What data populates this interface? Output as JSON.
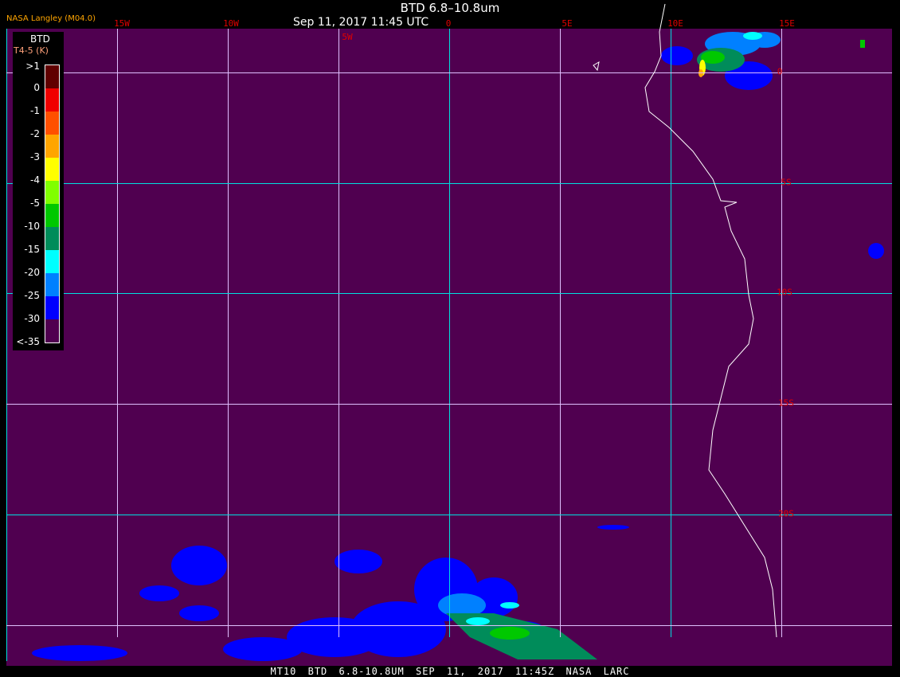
{
  "header": {
    "title": "BTD 6.8–10.8um",
    "subtitle": "Sep 11, 2017 11:45 UTC",
    "credit": "NASA Langley (M04.0)"
  },
  "longitude_labels": [
    "15W",
    "10W",
    "5W",
    "0",
    "5E",
    "10E",
    "15E"
  ],
  "latitude_labels": [
    "0",
    "5S",
    "10S",
    "15S",
    "20S"
  ],
  "legend": {
    "title": "BTD",
    "unit": "T4-5 (K)",
    "labels": [
      ">1",
      "0",
      "-1",
      "-2",
      "-3",
      "-4",
      "-5",
      "-10",
      "-15",
      "-20",
      "-25",
      "-30",
      "<-35"
    ],
    "colors": [
      "#600000",
      "#f00000",
      "#ff5000",
      "#ffa500",
      "#ffff00",
      "#80ff00",
      "#00c800",
      "#008c5a",
      "#00ffff",
      "#0080ff",
      "#0000ff",
      "#500050"
    ]
  },
  "colors": {
    "background": "#500050",
    "grid_cyan": "#00e0e0",
    "grid_light": "#e0c0ff",
    "coastline": "#ffffff"
  },
  "footer": "MT10  BTD 6.8-10.8UM   SEP 11, 2017 11:45Z   NASA LARC"
}
